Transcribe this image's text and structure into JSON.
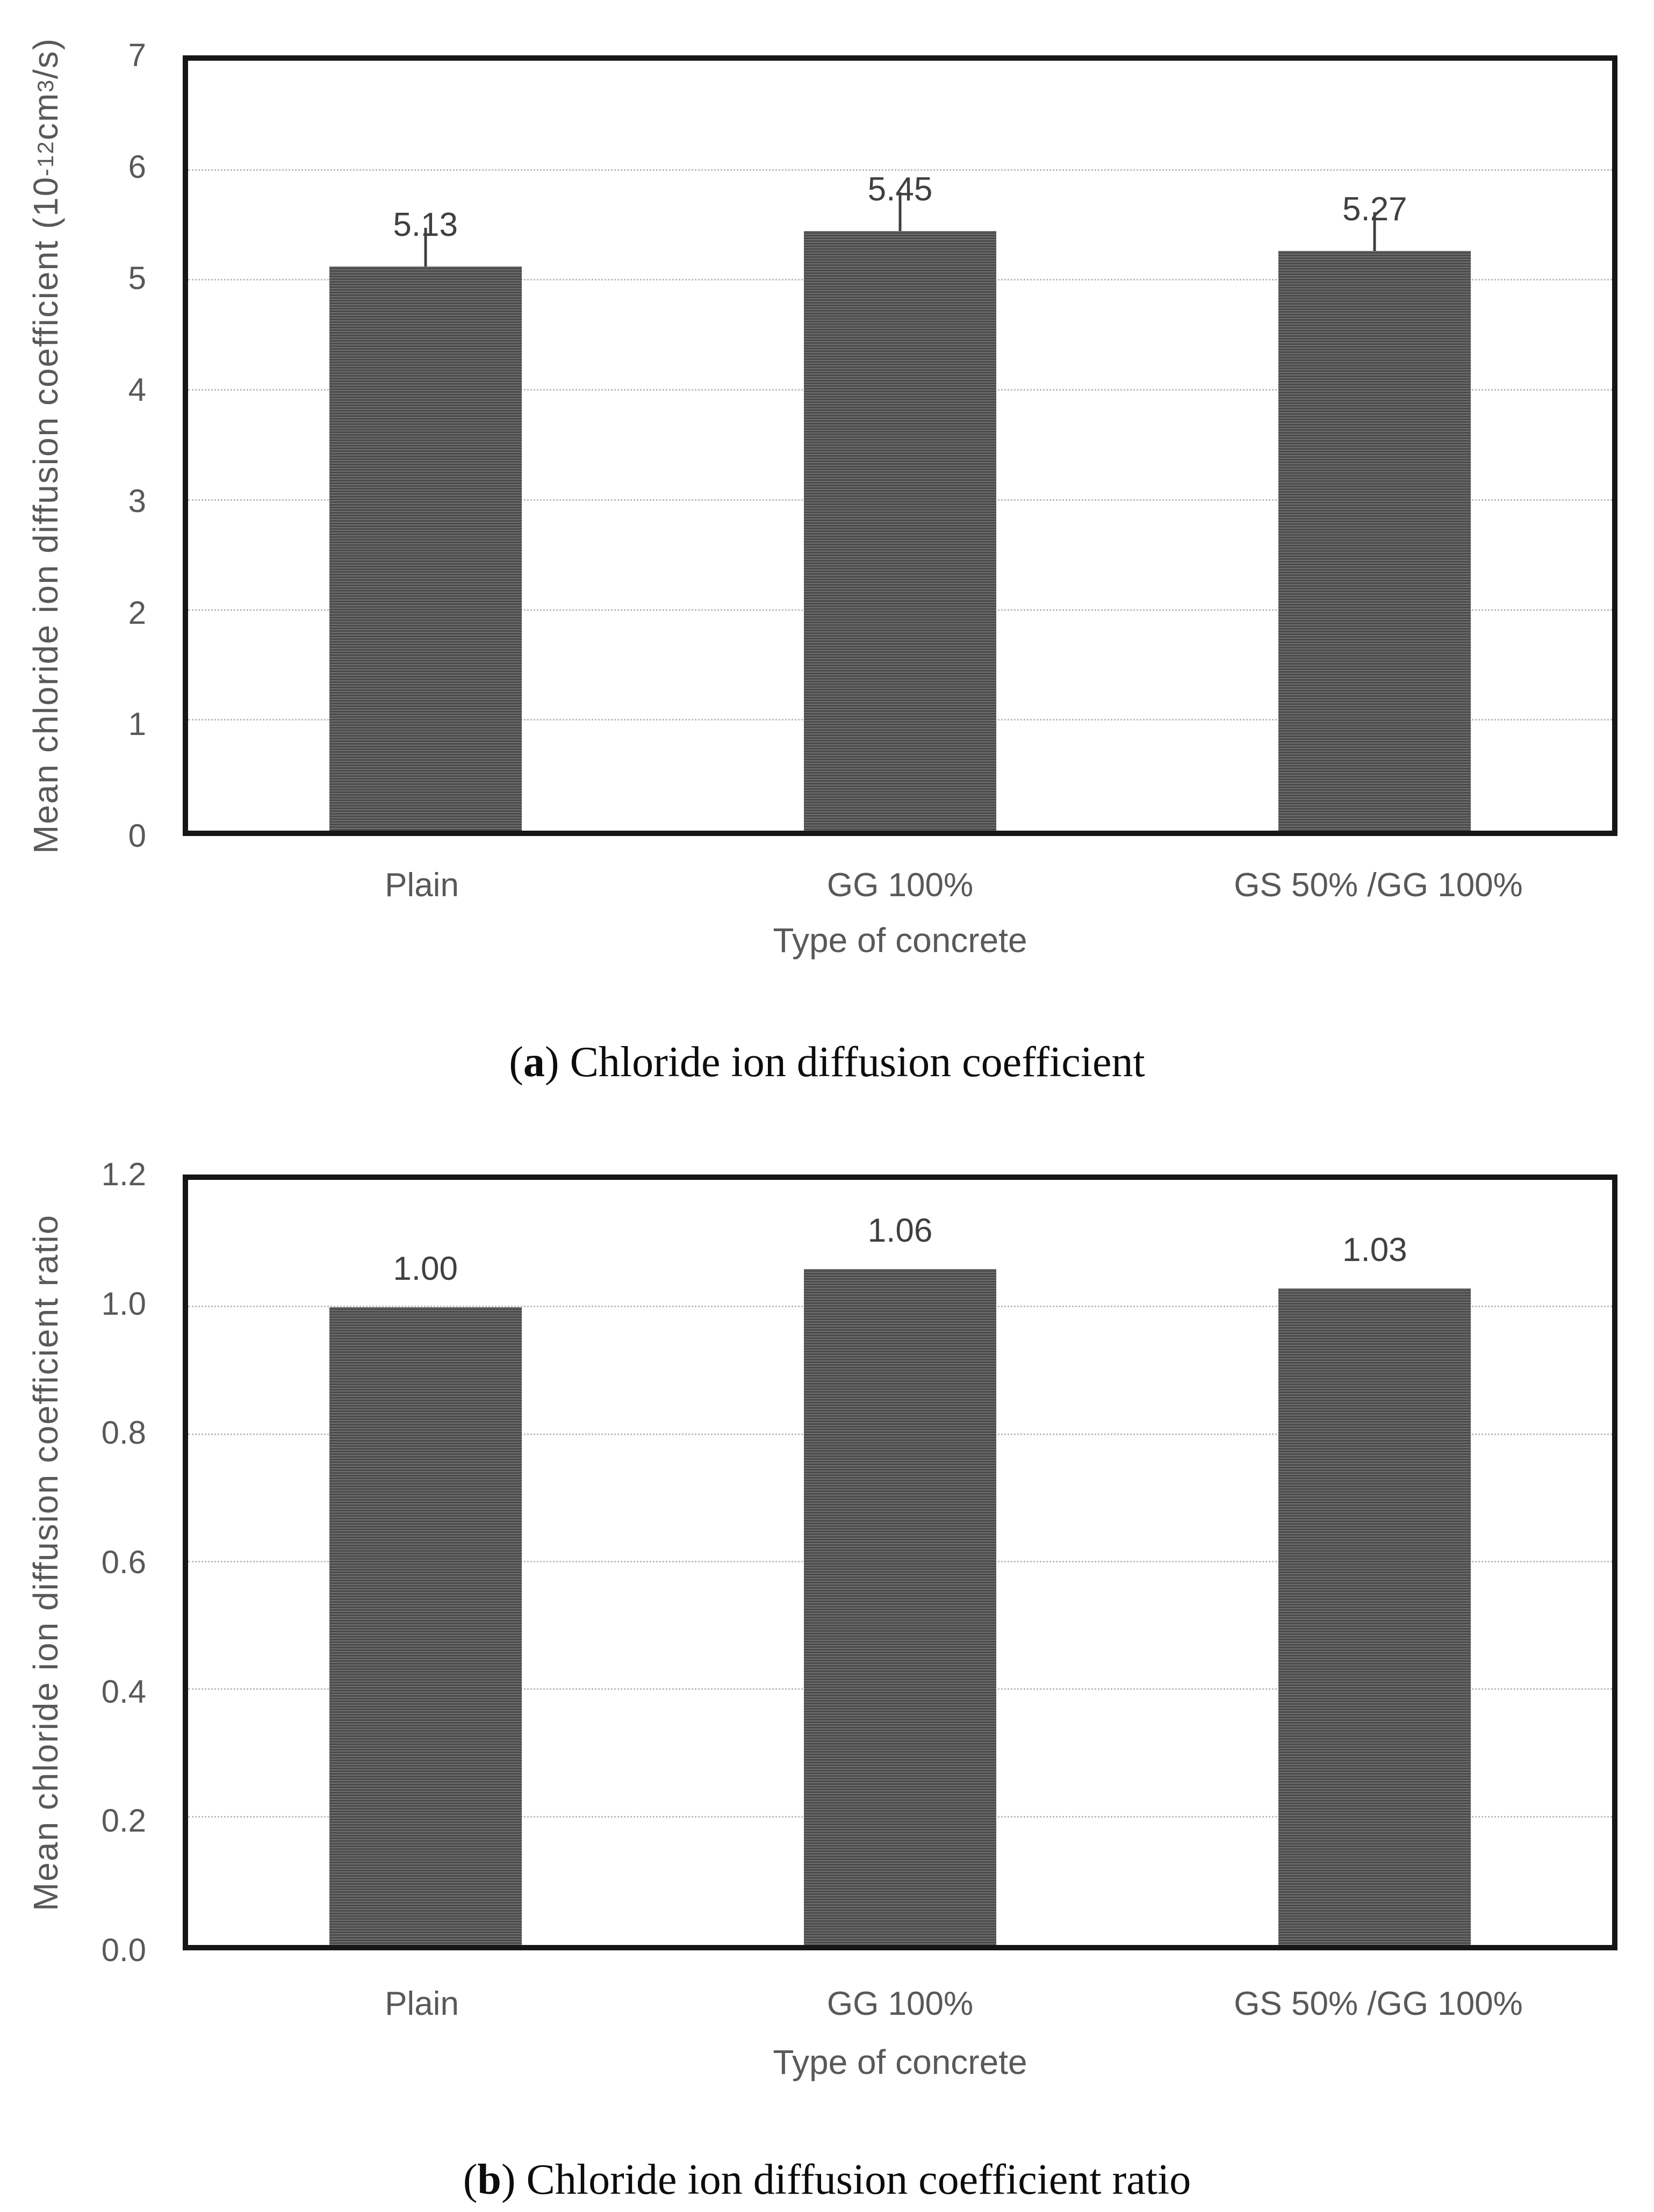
{
  "colors": {
    "bar_fill": "#555555",
    "bar_stripe_light": "#6e6e6e",
    "bar_stripe_dark": "#4b4b4b",
    "gridline": "#bdbdbd",
    "axis_border": "#161616",
    "tick_text": "#595959",
    "value_text": "#404040",
    "caption_text": "#0c0c0c"
  },
  "chart_data": [
    {
      "type": "bar",
      "panel": "a",
      "caption": {
        "open": "(",
        "letter": "a",
        "rest": ") Chloride ion diffusion coefficient"
      },
      "ylabel_parts": [
        {
          "t": "Mean chloride ion diffusion coefficient  (10"
        },
        {
          "sup": "-12"
        },
        {
          "t": "cm"
        },
        {
          "sup": "3"
        },
        {
          "t": "/s)"
        }
      ],
      "xlabel": "Type of concrete",
      "categories": [
        "Plain",
        "GG 100%",
        "GS 50% /GG 100%"
      ],
      "values": [
        5.13,
        5.45,
        5.27
      ],
      "value_labels": [
        "5.13",
        "5.45",
        "5.27"
      ],
      "ylim": [
        0,
        7
      ],
      "yticks": [
        0,
        1,
        2,
        3,
        4,
        5,
        6,
        7
      ],
      "ytick_labels": [
        "0",
        "1",
        "2",
        "3",
        "4",
        "5",
        "6",
        "7"
      ],
      "error_whisker": true,
      "grid": "horizontal-dotted",
      "legend": "none"
    },
    {
      "type": "bar",
      "panel": "b",
      "caption": {
        "open": "(",
        "letter": "b",
        "rest": ") Chloride ion diffusion coefficient ratio"
      },
      "ylabel_parts": [
        {
          "t": "Mean chloride ion diffusion coefficient  ratio"
        }
      ],
      "xlabel": "Type of concrete",
      "categories": [
        "Plain",
        "GG 100%",
        "GS 50% /GG 100%"
      ],
      "values": [
        1.0,
        1.06,
        1.03
      ],
      "value_labels": [
        "1.00",
        "1.06",
        "1.03"
      ],
      "ylim": [
        0,
        1.2
      ],
      "yticks": [
        0,
        0.2,
        0.4,
        0.6,
        0.8,
        1.0,
        1.2
      ],
      "ytick_labels": [
        "0.0",
        "0.2",
        "0.4",
        "0.6",
        "0.8",
        "1.0",
        "1.2"
      ],
      "error_whisker": false,
      "grid": "horizontal-dotted",
      "legend": "none"
    }
  ]
}
